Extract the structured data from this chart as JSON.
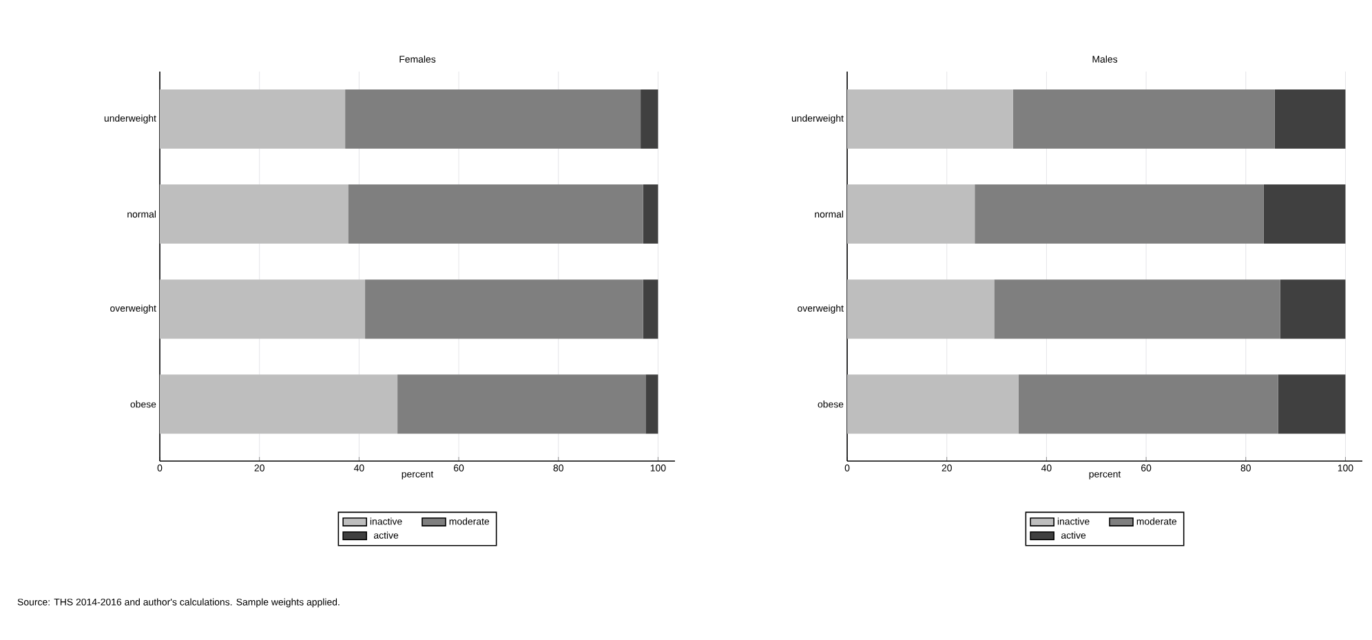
{
  "chart_data": [
    {
      "type": "bar",
      "orientation": "horizontal",
      "stacked": true,
      "title": "Females",
      "xlabel": "percent",
      "categories": [
        "underweight",
        "normal",
        "overweight",
        "obese"
      ],
      "series": [
        {
          "name": "inactive",
          "color": "#bebebe",
          "values": [
            37.2,
            37.8,
            41.2,
            47.7
          ]
        },
        {
          "name": "moderate",
          "color": "#7f7f7f",
          "values": [
            59.3,
            59.2,
            55.8,
            49.8
          ]
        },
        {
          "name": "active",
          "color": "#404040",
          "values": [
            3.5,
            3.0,
            3.0,
            2.5
          ]
        }
      ],
      "xlim": [
        0,
        103.4
      ],
      "xticks": [
        0,
        20,
        40,
        60,
        80,
        100
      ],
      "grid": "x",
      "legend": "bottom",
      "annotations": [
        "Source: THS 2014-2016 and author's calculations. Sample weights applied."
      ]
    },
    {
      "type": "bar",
      "orientation": "horizontal",
      "stacked": true,
      "title": "Males",
      "xlabel": "percent",
      "categories": [
        "underweight",
        "normal",
        "overweight",
        "obese"
      ],
      "series": [
        {
          "name": "inactive",
          "color": "#bebebe",
          "values": [
            33.3,
            25.6,
            29.5,
            34.4
          ]
        },
        {
          "name": "moderate",
          "color": "#7f7f7f",
          "values": [
            52.5,
            58.0,
            57.4,
            52.1
          ]
        },
        {
          "name": "active",
          "color": "#404040",
          "values": [
            14.2,
            16.4,
            13.1,
            13.5
          ]
        }
      ],
      "xlim": [
        0,
        103.4
      ],
      "xticks": [
        0,
        20,
        40,
        60,
        80,
        100
      ],
      "grid": "x",
      "legend": "bottom"
    }
  ]
}
